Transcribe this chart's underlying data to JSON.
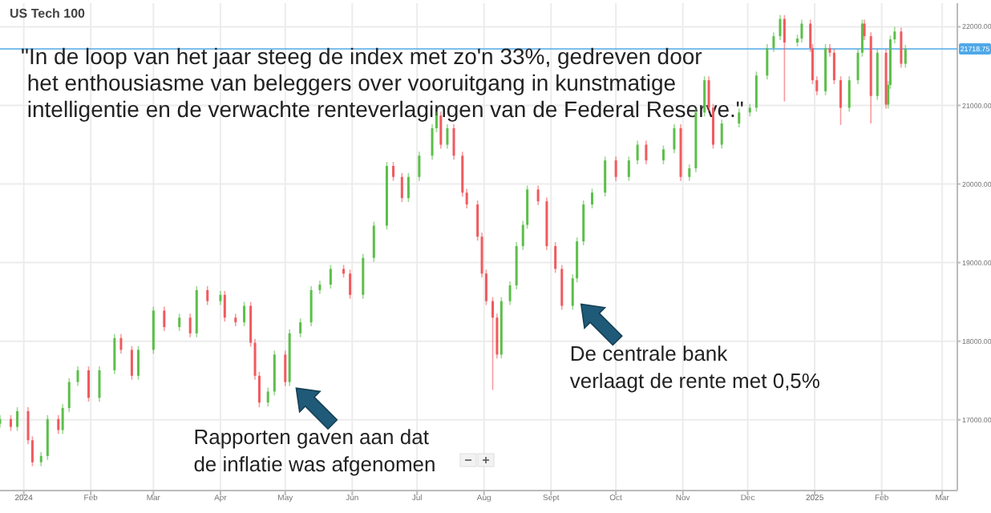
{
  "chart_data": {
    "type": "candlestick",
    "title": "US Tech 100",
    "annotations": [
      "\"In de loop van het jaar steeg de index met zo'n 33%, gedreven door\n het enthousiasme van beleggers over vooruitgang in kunstmatige\n intelligentie en de verwachte renteverlagingen van de Federal Reserve.\"",
      {
        "text": "Rapporten gaven aan dat\nde inflatie was afgenomen",
        "x": "2024-04-19",
        "y": 17220
      },
      {
        "text": "De centrale bank\nverlaagt de rente met 0,5%",
        "x": "2024-09-06",
        "y": 18450
      }
    ],
    "x": [
      "2023-12-21",
      "2023-12-26",
      "2023-12-29",
      "2024-01-03",
      "2024-01-05",
      "2024-01-09",
      "2024-01-12",
      "2024-01-17",
      "2024-01-19",
      "2024-01-22",
      "2024-01-26",
      "2024-01-31",
      "2024-02-05",
      "2024-02-12",
      "2024-02-15",
      "2024-02-20",
      "2024-02-23",
      "2024-03-01",
      "2024-03-06",
      "2024-03-13",
      "2024-03-18",
      "2024-03-21",
      "2024-03-26",
      "2024-04-01",
      "2024-04-03",
      "2024-04-08",
      "2024-04-12",
      "2024-04-15",
      "2024-04-17",
      "2024-04-19",
      "2024-04-23",
      "2024-04-26",
      "2024-05-01",
      "2024-05-03",
      "2024-05-08",
      "2024-05-13",
      "2024-05-17",
      "2024-05-22",
      "2024-05-28",
      "2024-05-31",
      "2024-06-06",
      "2024-06-11",
      "2024-06-17",
      "2024-06-20",
      "2024-06-24",
      "2024-06-27",
      "2024-07-02",
      "2024-07-08",
      "2024-07-10",
      "2024-07-12",
      "2024-07-15",
      "2024-07-18",
      "2024-07-22",
      "2024-07-24",
      "2024-07-29",
      "2024-07-31",
      "2024-08-02",
      "2024-08-05",
      "2024-08-07",
      "2024-08-09",
      "2024-08-13",
      "2024-08-16",
      "2024-08-19",
      "2024-08-21",
      "2024-08-26",
      "2024-08-30",
      "2024-09-03",
      "2024-09-06",
      "2024-09-11",
      "2024-09-13",
      "2024-09-16",
      "2024-09-20",
      "2024-09-26",
      "2024-10-01",
      "2024-10-07",
      "2024-10-11",
      "2024-10-15",
      "2024-10-23",
      "2024-10-28",
      "2024-10-31",
      "2024-11-04",
      "2024-11-07",
      "2024-11-11",
      "2024-11-13",
      "2024-11-15",
      "2024-11-19",
      "2024-11-27",
      "2024-12-02",
      "2024-12-05",
      "2024-12-10",
      "2024-12-13",
      "2024-12-16",
      "2024-12-18",
      "2024-12-24",
      "2024-12-26",
      "2024-12-30",
      "2024-12-31",
      "2025-01-02",
      "2025-01-06",
      "2025-01-08",
      "2025-01-10",
      "2025-01-13",
      "2025-01-17",
      "2025-01-21",
      "2025-01-23",
      "2025-01-24",
      "2025-01-27",
      "2025-01-30",
      "2025-02-03",
      "2025-02-04",
      "2025-02-05",
      "2025-02-07",
      "2025-02-10",
      "2025-02-12"
    ],
    "ohlc": [
      [
        16950,
        17060,
        16900,
        17010
      ],
      [
        17010,
        17060,
        16860,
        16910
      ],
      [
        16910,
        17160,
        16860,
        17110
      ],
      [
        17110,
        17160,
        16690,
        16740
      ],
      [
        16740,
        16790,
        16410,
        16460
      ],
      [
        16460,
        16590,
        16410,
        16540
      ],
      [
        16540,
        17060,
        16490,
        17010
      ],
      [
        17010,
        17060,
        16820,
        16870
      ],
      [
        16870,
        17200,
        16820,
        17150
      ],
      [
        17150,
        17530,
        17100,
        17480
      ],
      [
        17480,
        17680,
        17430,
        17630
      ],
      [
        17630,
        17680,
        17230,
        17280
      ],
      [
        17280,
        17680,
        17230,
        17630
      ],
      [
        17630,
        18090,
        17580,
        18040
      ],
      [
        18040,
        18090,
        17840,
        17890
      ],
      [
        17890,
        17940,
        17510,
        17560
      ],
      [
        17560,
        17940,
        17510,
        17890
      ],
      [
        17890,
        18440,
        17840,
        18390
      ],
      [
        18390,
        18440,
        18130,
        18180
      ],
      [
        18180,
        18350,
        18130,
        18300
      ],
      [
        18300,
        18350,
        18050,
        18100
      ],
      [
        18100,
        18700,
        18050,
        18650
      ],
      [
        18650,
        18700,
        18460,
        18510
      ],
      [
        18510,
        18640,
        18460,
        18590
      ],
      [
        18590,
        18640,
        18250,
        18300
      ],
      [
        18300,
        18350,
        18190,
        18240
      ],
      [
        18240,
        18500,
        18190,
        18450
      ],
      [
        18450,
        18500,
        17930,
        17980
      ],
      [
        17980,
        18030,
        17510,
        17560
      ],
      [
        17560,
        17610,
        17160,
        17220
      ],
      [
        17220,
        17410,
        17170,
        17360
      ],
      [
        17360,
        17880,
        17310,
        17830
      ],
      [
        17830,
        17880,
        17430,
        17480
      ],
      [
        17480,
        18150,
        17430,
        18100
      ],
      [
        18100,
        18290,
        18050,
        18240
      ],
      [
        18240,
        18700,
        18190,
        18650
      ],
      [
        18650,
        18770,
        18600,
        18720
      ],
      [
        18720,
        18970,
        18670,
        18920
      ],
      [
        18920,
        18970,
        18810,
        18860
      ],
      [
        18860,
        18910,
        18540,
        18590
      ],
      [
        18590,
        19110,
        18540,
        19060
      ],
      [
        19060,
        19520,
        19010,
        19470
      ],
      [
        19470,
        20280,
        19420,
        20230
      ],
      [
        20230,
        20280,
        20040,
        20090
      ],
      [
        20090,
        20140,
        19770,
        19820
      ],
      [
        19820,
        20140,
        19770,
        20090
      ],
      [
        20090,
        20410,
        20040,
        20360
      ],
      [
        20360,
        20760,
        20310,
        20710
      ],
      [
        20710,
        20920,
        20660,
        20870
      ],
      [
        20870,
        20920,
        20450,
        20500
      ],
      [
        20500,
        20760,
        20450,
        20710
      ],
      [
        20710,
        20760,
        20310,
        20360
      ],
      [
        20360,
        20410,
        19840,
        19890
      ],
      [
        19890,
        19940,
        19690,
        19740
      ],
      [
        19740,
        19790,
        19280,
        19330
      ],
      [
        19330,
        19380,
        18810,
        18860
      ],
      [
        18860,
        18910,
        18460,
        18510
      ],
      [
        18510,
        18560,
        17380,
        18300
      ],
      [
        18300,
        18350,
        17780,
        17830
      ],
      [
        17830,
        18560,
        17780,
        18510
      ],
      [
        18510,
        18760,
        18460,
        18710
      ],
      [
        18710,
        19260,
        18660,
        19210
      ],
      [
        19210,
        19530,
        19160,
        19480
      ],
      [
        19480,
        19980,
        19430,
        19930
      ],
      [
        19930,
        19980,
        19730,
        19780
      ],
      [
        19780,
        19830,
        19160,
        19210
      ],
      [
        19210,
        19260,
        18870,
        18920
      ],
      [
        18920,
        18970,
        18400,
        18450
      ],
      [
        18450,
        18850,
        18400,
        18800
      ],
      [
        18800,
        19320,
        18750,
        19270
      ],
      [
        19270,
        19790,
        19220,
        19740
      ],
      [
        19740,
        19940,
        19690,
        19890
      ],
      [
        19890,
        20350,
        19840,
        20300
      ],
      [
        20300,
        20350,
        20040,
        20090
      ],
      [
        20090,
        20350,
        20040,
        20300
      ],
      [
        20300,
        20550,
        20250,
        20500
      ],
      [
        20500,
        20550,
        20250,
        20300
      ],
      [
        20300,
        20490,
        20250,
        20440
      ],
      [
        20440,
        20760,
        20390,
        20710
      ],
      [
        20710,
        20760,
        20040,
        20090
      ],
      [
        20090,
        20250,
        20040,
        20200
      ],
      [
        20200,
        20960,
        20150,
        20910
      ],
      [
        20910,
        21370,
        20860,
        21320
      ],
      [
        21320,
        21370,
        20920,
        20970
      ],
      [
        20970,
        21020,
        20450,
        20500
      ],
      [
        20500,
        20820,
        20450,
        20770
      ],
      [
        20770,
        20960,
        20720,
        20910
      ],
      [
        20910,
        21020,
        20860,
        20970
      ],
      [
        20970,
        21430,
        20920,
        21380
      ],
      [
        21380,
        21780,
        21330,
        21730
      ],
      [
        21730,
        21930,
        21680,
        21880
      ],
      [
        21880,
        22150,
        21830,
        22100
      ],
      [
        22100,
        22150,
        21050,
        21800
      ],
      [
        21800,
        21900,
        21750,
        21850
      ],
      [
        21850,
        22090,
        21800,
        22040
      ],
      [
        22040,
        22090,
        21680,
        21730
      ],
      [
        21730,
        21780,
        21270,
        21320
      ],
      [
        21320,
        21370,
        21130,
        21180
      ],
      [
        21180,
        21780,
        21130,
        21730
      ],
      [
        21730,
        21780,
        21620,
        21670
      ],
      [
        21670,
        21720,
        21270,
        21320
      ],
      [
        21320,
        21370,
        20750,
        20970
      ],
      [
        20970,
        21370,
        20920,
        21320
      ],
      [
        21320,
        21720,
        21270,
        21670
      ],
      [
        21670,
        22090,
        21620,
        22040
      ],
      [
        22040,
        22090,
        21830,
        21880
      ],
      [
        21880,
        21930,
        20770,
        21120
      ],
      [
        21120,
        21720,
        21070,
        21670
      ],
      [
        21670,
        21720,
        20960,
        21010
      ],
      [
        21010,
        21310,
        20960,
        21260
      ],
      [
        21260,
        21890,
        21210,
        21840
      ],
      [
        21840,
        22000,
        21790,
        21940
      ],
      [
        21940,
        21990,
        21480,
        21530
      ],
      [
        21530,
        21770,
        21480,
        21720
      ]
    ],
    "xlim": [
      "2023-12-21",
      "2025-03-08"
    ],
    "xticks": [
      {
        "value": "2024-01-01",
        "label": "2024"
      },
      {
        "value": "2024-02-01",
        "label": "Feb"
      },
      {
        "value": "2024-03-01",
        "label": "Mar"
      },
      {
        "value": "2024-04-01",
        "label": "Apr"
      },
      {
        "value": "2024-05-01",
        "label": "May"
      },
      {
        "value": "2024-06-01",
        "label": "Jun"
      },
      {
        "value": "2024-07-01",
        "label": "Jul"
      },
      {
        "value": "2024-08-01",
        "label": "Aug"
      },
      {
        "value": "2024-09-01",
        "label": "Sept"
      },
      {
        "value": "2024-10-01",
        "label": "Oct"
      },
      {
        "value": "2024-11-01",
        "label": "Nov"
      },
      {
        "value": "2024-12-01",
        "label": "Dec"
      },
      {
        "value": "2025-01-01",
        "label": "2025"
      },
      {
        "value": "2025-02-01",
        "label": "Feb"
      },
      {
        "value": "2025-03-01",
        "label": "Mar"
      }
    ],
    "ylim": [
      16100,
      22300
    ],
    "yticks": [
      {
        "value": 17000,
        "label": "17000.00"
      },
      {
        "value": 18000,
        "label": "18000.00"
      },
      {
        "value": 19000,
        "label": "19000.00"
      },
      {
        "value": 20000,
        "label": "20000.00"
      },
      {
        "value": 21000,
        "label": "21000.00"
      },
      {
        "value": 22000,
        "label": "22000.00"
      }
    ],
    "ref_lines": [
      {
        "axis": "y",
        "value": 21718.75,
        "label": "21718.75",
        "color": "#4fa8e8"
      }
    ],
    "grid": true
  }
}
